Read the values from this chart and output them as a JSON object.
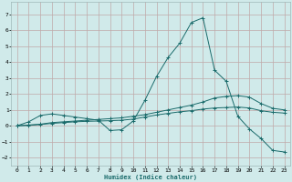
{
  "xlabel": "Humidex (Indice chaleur)",
  "xlim": [
    -0.5,
    23.5
  ],
  "ylim": [
    -2.5,
    7.8
  ],
  "yticks": [
    -2,
    -1,
    0,
    1,
    2,
    3,
    4,
    5,
    6,
    7
  ],
  "xticks": [
    0,
    1,
    2,
    3,
    4,
    5,
    6,
    7,
    8,
    9,
    10,
    11,
    12,
    13,
    14,
    15,
    16,
    17,
    18,
    19,
    20,
    21,
    22,
    23
  ],
  "bg_color": "#d0eaea",
  "grid_color": "#b8c8c8",
  "line_color": "#1a6b6b",
  "line1_x": [
    0,
    1,
    2,
    3,
    4,
    5,
    6,
    7,
    8,
    9,
    10,
    11,
    12,
    13,
    14,
    15,
    16,
    17,
    18,
    19,
    20,
    21,
    22,
    23
  ],
  "line1_y": [
    0.0,
    0.25,
    0.65,
    0.75,
    0.65,
    0.55,
    0.45,
    0.35,
    -0.3,
    -0.25,
    0.3,
    1.6,
    3.1,
    4.3,
    5.2,
    6.5,
    6.8,
    3.5,
    2.8,
    0.6,
    -0.2,
    -0.8,
    -1.55,
    -1.65
  ],
  "line2_x": [
    0,
    1,
    2,
    3,
    4,
    5,
    6,
    7,
    8,
    9,
    10,
    11,
    12,
    13,
    14,
    15,
    16,
    17,
    18,
    19,
    20,
    21,
    22,
    23
  ],
  "line2_y": [
    0.0,
    0.05,
    0.1,
    0.2,
    0.25,
    0.3,
    0.35,
    0.4,
    0.45,
    0.5,
    0.6,
    0.7,
    0.85,
    1.0,
    1.15,
    1.3,
    1.5,
    1.75,
    1.85,
    1.9,
    1.8,
    1.4,
    1.1,
    1.0
  ],
  "line3_x": [
    0,
    1,
    2,
    3,
    4,
    5,
    6,
    7,
    8,
    9,
    10,
    11,
    12,
    13,
    14,
    15,
    16,
    17,
    18,
    19,
    20,
    21,
    22,
    23
  ],
  "line3_y": [
    0.0,
    0.02,
    0.08,
    0.15,
    0.2,
    0.25,
    0.28,
    0.3,
    0.32,
    0.35,
    0.42,
    0.55,
    0.68,
    0.78,
    0.88,
    0.95,
    1.05,
    1.12,
    1.15,
    1.18,
    1.12,
    0.95,
    0.85,
    0.8
  ]
}
